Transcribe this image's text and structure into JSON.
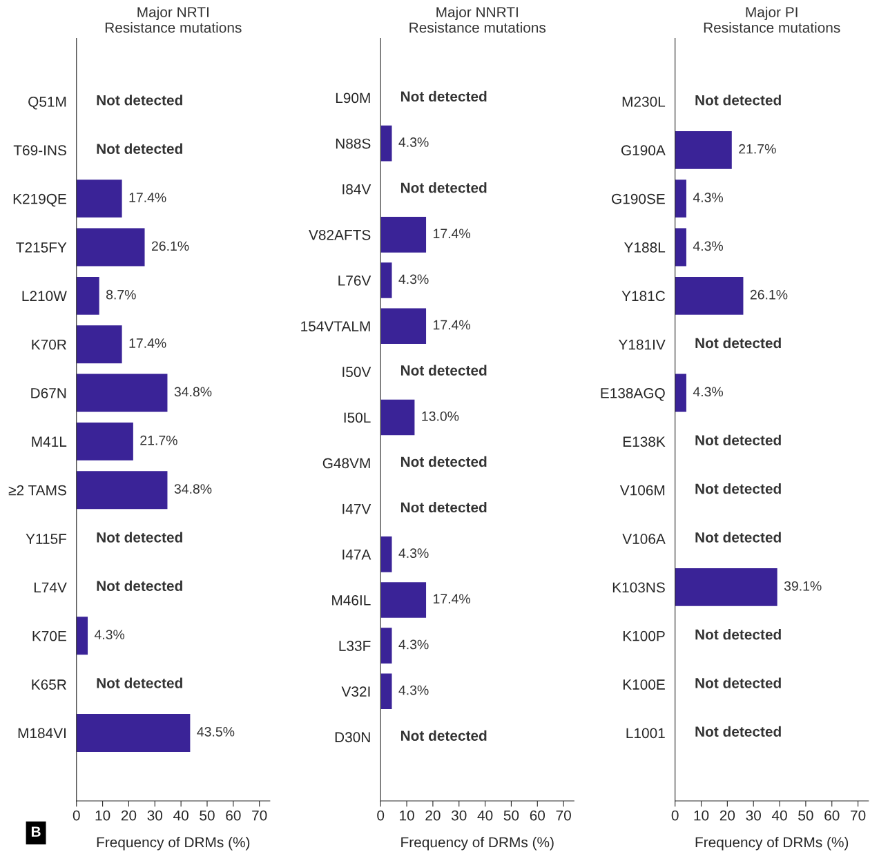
{
  "chart_data": [
    {
      "type": "bar",
      "orientation": "horizontal",
      "title": "Major NRTI\nResistance mutations",
      "xlabel": "Frequency of DRMs (%)",
      "annotations": [
        "B"
      ],
      "color": "#3a2397",
      "xlim": [
        0,
        74
      ],
      "xticks": [
        0,
        10,
        20,
        30,
        40,
        50,
        60,
        70
      ],
      "grid": false,
      "legend": false,
      "categories": [
        "Q51M",
        "T69-INS",
        "K219QE",
        "T215FY",
        "L210W",
        "K70R",
        "D67N",
        "M41L",
        "≥2 TAMS",
        "Y115F",
        "L74V",
        "K70E",
        "K65R",
        "M184VI"
      ],
      "values": [
        0,
        0,
        17.4,
        26.1,
        8.7,
        17.4,
        34.8,
        21.7,
        34.8,
        0,
        0,
        4.3,
        0,
        43.5
      ],
      "value_labels": [
        "Not detected",
        "Not detected",
        "17.4%",
        "26.1%",
        "8.7%",
        "17.4%",
        "34.8%",
        "21.7%",
        "34.8%",
        "Not detected",
        "Not detected",
        "4.3%",
        "Not detected",
        "43.5%"
      ]
    },
    {
      "type": "bar",
      "orientation": "horizontal",
      "title": "Major NNRTI\nResistance mutations",
      "xlabel": "Frequency of DRMs (%)",
      "color": "#3a2397",
      "xlim": [
        0,
        74
      ],
      "xticks": [
        0,
        10,
        20,
        30,
        40,
        50,
        60,
        70
      ],
      "grid": false,
      "legend": false,
      "categories": [
        "L90M",
        "N88S",
        "I84V",
        "V82AFTS",
        "L76V",
        "154VTALM",
        "I50V",
        "I50L",
        "G48VM",
        "I47V",
        "I47A",
        "M46IL",
        "L33F",
        "V32I",
        "D30N"
      ],
      "values": [
        0,
        4.3,
        0,
        17.4,
        4.3,
        17.4,
        0,
        13.0,
        0,
        0,
        4.3,
        17.4,
        4.3,
        4.3,
        0
      ],
      "value_labels": [
        "Not detected",
        "4.3%",
        "Not detected",
        "17.4%",
        "4.3%",
        "17.4%",
        "Not detected",
        "13.0%",
        "Not detected",
        "Not detected",
        "4.3%",
        "17.4%",
        "4.3%",
        "4.3%",
        "Not detected"
      ]
    },
    {
      "type": "bar",
      "orientation": "horizontal",
      "title": "Major PI\nResistance mutations",
      "xlabel": "Frequency of DRMs (%)",
      "color": "#3a2397",
      "xlim": [
        0,
        74
      ],
      "xticks": [
        0,
        10,
        20,
        30,
        40,
        50,
        60,
        70
      ],
      "grid": false,
      "legend": false,
      "categories": [
        "M230L",
        "G190A",
        "G190SE",
        "Y188L",
        "Y181C",
        "Y181IV",
        "E138AGQ",
        "E138K",
        "V106M",
        "V106A",
        "K103NS",
        "K100P",
        "K100E",
        "L1001"
      ],
      "values": [
        0,
        21.7,
        4.3,
        4.3,
        26.1,
        0,
        4.3,
        0,
        0,
        0,
        39.1,
        0,
        0,
        0
      ],
      "value_labels": [
        "Not detected",
        "21.7%",
        "4.3%",
        "4.3%",
        "26.1%",
        "Not detected",
        "4.3%",
        "Not detected",
        "Not detected",
        "Not detected",
        "39.1%",
        "Not detected",
        "Not detected",
        "Not detected"
      ]
    }
  ]
}
